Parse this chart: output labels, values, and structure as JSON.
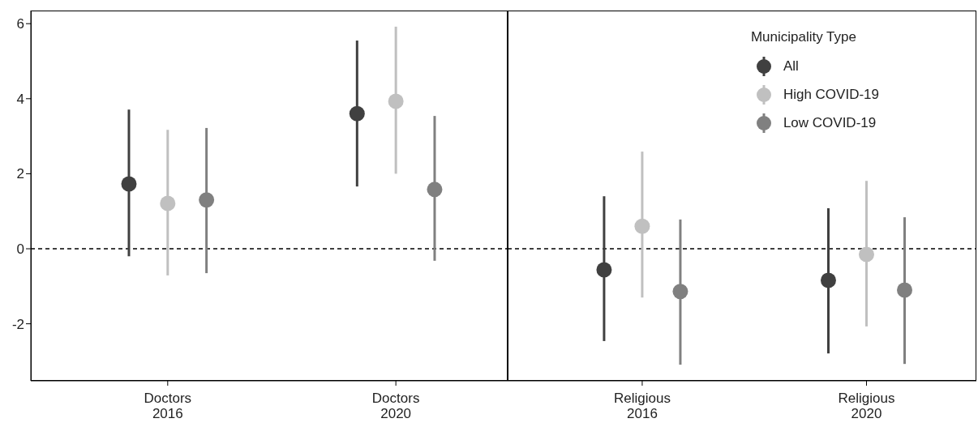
{
  "chart_data": [
    {
      "type": "scatter",
      "categories": [
        "Doctors 2016",
        "Doctors 2020"
      ],
      "ylim": [
        -3.52,
        6.35
      ],
      "yticks": [
        -2,
        0,
        2,
        4,
        6
      ],
      "grid": false,
      "legend": false,
      "marker": "circle",
      "ref_lines": [
        {
          "axis": "y",
          "value": 0,
          "line_style": "dashed",
          "color": "#000000"
        }
      ],
      "series": [
        {
          "color": "#404040",
          "values": [
            1.73,
            3.6
          ],
          "errors": [
            [
              -0.2,
              3.71
            ],
            [
              1.66,
              5.55
            ]
          ]
        },
        {
          "color": "#c0c0c0",
          "values": [
            1.21,
            3.93
          ],
          "errors": [
            [
              -0.71,
              3.17
            ],
            [
              2.0,
              5.92
            ]
          ]
        },
        {
          "color": "#808080",
          "values": [
            1.3,
            1.58
          ],
          "errors": [
            [
              -0.65,
              3.22
            ],
            [
              -0.32,
              3.54
            ]
          ]
        }
      ]
    },
    {
      "type": "scatter",
      "categories": [
        "Religious 2016",
        "Religious 2020"
      ],
      "ylim": [
        -3.52,
        6.35
      ],
      "yticks": [
        -2,
        0,
        2,
        4,
        6
      ],
      "tick_labels": "x",
      "grid": false,
      "legend": "top right",
      "legend_title": "Municipality Type",
      "marker": "circle",
      "ref_lines": [
        {
          "axis": "y",
          "value": 0,
          "line_style": "dashed",
          "color": "#000000"
        }
      ],
      "series": [
        {
          "name": "All",
          "color": "#404040",
          "values": [
            -0.56,
            -0.84
          ],
          "errors": [
            [
              -2.46,
              1.4
            ],
            [
              -2.79,
              1.08
            ]
          ]
        },
        {
          "name": "High COVID-19",
          "color": "#c0c0c0",
          "values": [
            0.6,
            -0.15
          ],
          "errors": [
            [
              -1.3,
              2.59
            ],
            [
              -2.07,
              1.81
            ]
          ]
        },
        {
          "name": "Low COVID-19",
          "color": "#808080",
          "values": [
            -1.14,
            -1.1
          ],
          "errors": [
            [
              -3.09,
              0.78
            ],
            [
              -3.07,
              0.84
            ]
          ]
        }
      ]
    }
  ]
}
